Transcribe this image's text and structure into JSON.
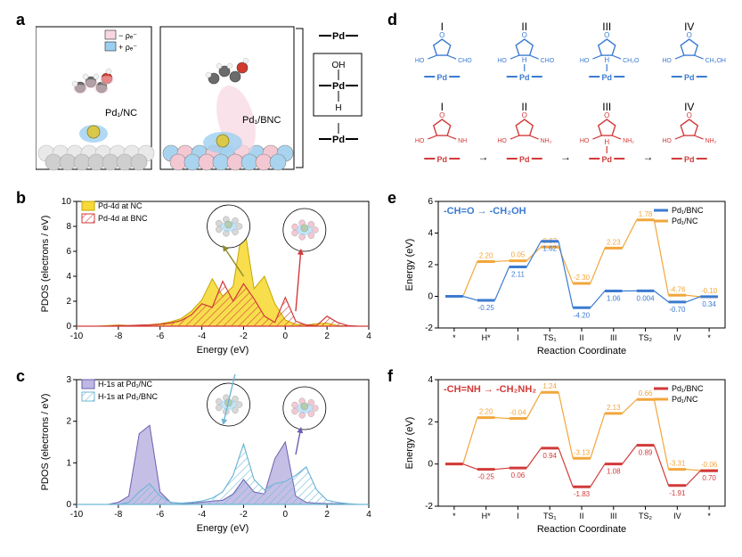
{
  "labels": {
    "a": "a",
    "b": "b",
    "c": "c",
    "d": "d",
    "e": "e",
    "f": "f"
  },
  "panel_a": {
    "legend": {
      "neg": "− ρₑ⁻",
      "pos": "+ ρₑ⁻",
      "neg_color": "#f7d6df",
      "pos_color": "#9dd0f0"
    },
    "left_label": "Pd₁/NC",
    "right_label": "Pd₁/BNC",
    "scheme": {
      "top": "Pd",
      "mid_top": "OH",
      "mid_bot": "Pd",
      "h": "H",
      "bottom": "Pd"
    },
    "border_color": "#000000",
    "atoms": {
      "support_color_light": "#e9e9e9",
      "support_color_dark": "#cfcfcf",
      "carbon": "#6b6b6b",
      "oxygen": "#d23a2e",
      "hydrogen": "#f2f2f2",
      "pd": "#d9c84a",
      "boron": "#f4c8d3",
      "nitrogen": "#a9d4ef"
    }
  },
  "panel_b": {
    "legend": [
      {
        "label": "Pd-4d at NC",
        "fill": "#f7d938",
        "stroke": "#c4a800",
        "hatch": false
      },
      {
        "label": "Pd-4d at BNC",
        "fill": "#ffffff",
        "stroke": "#d23a3a",
        "hatch": true
      }
    ],
    "xlabel": "Energy (eV)",
    "ylabel": "PDOS (electrons / eV)",
    "xlim": [
      -10,
      4
    ],
    "xtick_step": 2,
    "ylim": [
      0,
      10
    ],
    "ytick_step": 2,
    "series": {
      "nc": {
        "color_fill": "#f7d938",
        "color_stroke": "#c4a800",
        "x": [
          -10,
          -9.5,
          -9,
          -8.5,
          -8,
          -7.5,
          -7,
          -6.5,
          -6,
          -5.5,
          -5,
          -4.5,
          -4,
          -3.5,
          -3,
          -2.5,
          -2,
          -1.5,
          -1,
          -0.5,
          0,
          0.5,
          1,
          1.5,
          2,
          2.5,
          3,
          3.5,
          4
        ],
        "y": [
          0,
          0,
          0,
          0.05,
          0.1,
          0.05,
          0.08,
          0.12,
          0.2,
          0.35,
          0.6,
          1.2,
          2.1,
          3.8,
          2.4,
          3.2,
          8.4,
          3.0,
          4.0,
          1.8,
          0.5,
          0.15,
          0.1,
          0.2,
          0.25,
          0.05,
          0,
          0,
          0
        ]
      },
      "bnc": {
        "color_stroke": "#d23a3a",
        "hatch_color": "#d23a3a",
        "x": [
          -10,
          -9.5,
          -9,
          -8.5,
          -8,
          -7.5,
          -7,
          -6.5,
          -6,
          -5.5,
          -5,
          -4.5,
          -4,
          -3.5,
          -3,
          -2.5,
          -2,
          -1.5,
          -1,
          -0.5,
          0,
          0.5,
          1,
          1.5,
          2,
          2.5,
          3,
          3.5,
          4
        ],
        "y": [
          0,
          0,
          0,
          0,
          0.05,
          0.05,
          0.08,
          0.1,
          0.15,
          0.25,
          0.45,
          0.9,
          1.8,
          1.5,
          3.6,
          2.0,
          3.4,
          2.2,
          0.8,
          0.3,
          2.3,
          0.4,
          0.1,
          0.05,
          0.8,
          0.3,
          0.05,
          0,
          0
        ]
      }
    },
    "inset_arrow_color_left": "#8b8a2a",
    "inset_arrow_color_right": "#d23a3a",
    "grid_color": "none",
    "axis_color": "#000000"
  },
  "panel_c": {
    "legend": [
      {
        "label": "H-1s at Pd₁/NC",
        "fill": "#bfb8e3",
        "stroke": "#6a5fb0",
        "hatch": false
      },
      {
        "label": "H-1s at Pd₁/BNC",
        "fill": "#ffffff",
        "stroke": "#6fb7d6",
        "hatch": true
      }
    ],
    "xlabel": "Energy (eV)",
    "ylabel": "PDOS (electrons / eV)",
    "xlim": [
      -10,
      4
    ],
    "xtick_step": 2,
    "ylim": [
      0,
      3
    ],
    "ytick_step": 1,
    "series": {
      "nc": {
        "color_fill": "#bfb8e3",
        "color_stroke": "#6a5fb0",
        "x": [
          -10,
          -9.5,
          -9,
          -8.5,
          -8,
          -7.5,
          -7,
          -6.5,
          -6,
          -5.5,
          -5,
          -4.5,
          -4,
          -3.5,
          -3,
          -2.5,
          -2,
          -1.5,
          -1,
          -0.5,
          0,
          0.5,
          1,
          1.5,
          2,
          2.5,
          3,
          3.5,
          4
        ],
        "y": [
          0,
          0,
          0,
          0,
          0.05,
          0.2,
          1.7,
          1.9,
          0.3,
          0.05,
          0.02,
          0.03,
          0.05,
          0.08,
          0.1,
          0.25,
          0.6,
          0.3,
          0.25,
          1.1,
          1.5,
          0.2,
          0.05,
          0.03,
          0.02,
          0.02,
          0.01,
          0,
          0
        ]
      },
      "bnc": {
        "color_stroke": "#6fb7d6",
        "hatch_color": "#6fb7d6",
        "x": [
          -10,
          -9.5,
          -9,
          -8.5,
          -8,
          -7.5,
          -7,
          -6.5,
          -6,
          -5.5,
          -5,
          -4.5,
          -4,
          -3.5,
          -3,
          -2.5,
          -2,
          -1.5,
          -1,
          -0.5,
          0,
          0.5,
          1,
          1.5,
          2,
          2.5,
          3,
          3.5,
          4
        ],
        "y": [
          0,
          0,
          0,
          0,
          0,
          0.05,
          0.3,
          0.5,
          0.2,
          0.05,
          0.03,
          0.05,
          0.08,
          0.15,
          0.3,
          0.7,
          1.45,
          0.6,
          0.35,
          0.5,
          0.55,
          0.7,
          0.9,
          0.35,
          0.1,
          0.05,
          0.02,
          0,
          0
        ]
      }
    },
    "inset_arrow_color_left": "#6fb7d6",
    "inset_arrow_color_right": "#6a5fb0",
    "axis_color": "#000000"
  },
  "panel_d": {
    "roman": [
      "I",
      "II",
      "III",
      "IV"
    ],
    "blue": "#3b7bd1",
    "red": "#d23a3a",
    "pd_label": "Pd",
    "h_label": "H",
    "arrow": "→"
  },
  "panel_e": {
    "title": "-CH=O → -CH₂OH",
    "title_color": "#3b7bd1",
    "legend": [
      {
        "label": "Pd₁/BNC",
        "color": "#3b7bd1"
      },
      {
        "label": "Pd₁/NC",
        "color": "#f2a63b"
      }
    ],
    "xlabel": "Reaction Coordinate",
    "ylabel": "Energy (eV)",
    "ylim": [
      -2,
      6
    ],
    "ytick_step": 2,
    "states": [
      "*",
      "H*",
      "I",
      "TS₁",
      "II",
      "III",
      "TS₂",
      "IV",
      "*"
    ],
    "bnc": {
      "color": "#3b7bd1",
      "y": [
        0,
        -0.25,
        1.86,
        3.48,
        -0.72,
        0.34,
        0.344,
        -0.36,
        -0.02
      ],
      "annot": [
        "",
        "-0.25",
        "2.11",
        "1.62",
        "-4.20",
        "1.06",
        "0.004",
        "-0.70",
        "0.34"
      ]
    },
    "nc": {
      "color": "#f2a63b",
      "y": [
        0,
        2.2,
        2.25,
        3.12,
        0.82,
        3.05,
        4.83,
        0.07,
        -0.03
      ],
      "annot": [
        "",
        "2.20",
        "0.05",
        "0.87",
        "-2.30",
        "2.23",
        "1.78",
        "-4.76",
        "-0.10"
      ]
    },
    "axis_color": "#000000"
  },
  "panel_f": {
    "title": "-CH=NH → -CH₂NH₂",
    "title_color": "#d23a3a",
    "legend": [
      {
        "label": "Pd₁/BNC",
        "color": "#d23a3a"
      },
      {
        "label": "Pd₁/NC",
        "color": "#f2a63b"
      }
    ],
    "xlabel": "Reaction Coordinate",
    "ylabel": "Energy (eV)",
    "ylim": [
      -2,
      4
    ],
    "ytick_step": 2,
    "states": [
      "*",
      "H*",
      "I",
      "TS₁",
      "II",
      "III",
      "TS₂",
      "IV",
      "*"
    ],
    "bnc": {
      "color": "#d23a3a",
      "y": [
        0,
        -0.25,
        -0.19,
        0.75,
        -1.08,
        0.0,
        0.89,
        -1.02,
        -0.32
      ],
      "annot": [
        "",
        "-0.25",
        "0.06",
        "0.94",
        "-1.83",
        "1.08",
        "0.89",
        "-1.91",
        "0.70"
      ]
    },
    "nc": {
      "color": "#f2a63b",
      "y": [
        0,
        2.2,
        2.16,
        3.4,
        0.27,
        2.4,
        3.06,
        -0.25,
        -0.31
      ],
      "annot": [
        "",
        "2.20",
        "-0.04",
        "1.24",
        "-3.13",
        "2.13",
        "0.66",
        "-3.31",
        "-0.06"
      ]
    },
    "axis_color": "#000000"
  }
}
